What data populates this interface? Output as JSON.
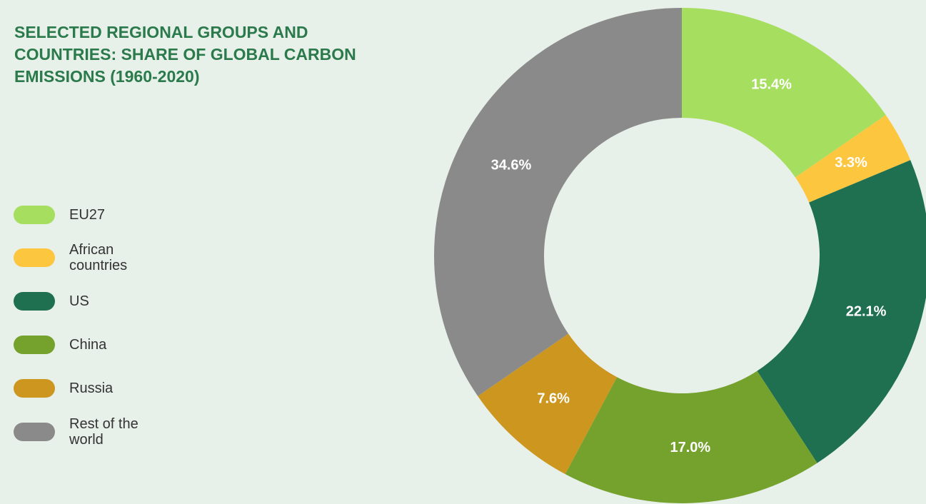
{
  "chart_data": {
    "type": "donut",
    "title": "SELECTED REGIONAL GROUPS AND COUNTRIES: SHARE OF GLOBAL CARBON EMISSIONS (1960-2020)",
    "categories": [
      "EU27",
      "African countries",
      "US",
      "China",
      "Russia",
      "Rest of the world"
    ],
    "values": [
      15.4,
      3.3,
      22.1,
      17.0,
      7.6,
      34.6
    ],
    "value_labels": [
      "15.4%",
      "3.3%",
      "22.1%",
      "17.0%",
      "7.6%",
      "34.6%"
    ],
    "colors": [
      "#a6de5f",
      "#fdc63f",
      "#1f7050",
      "#74a22d",
      "#cc961f",
      "#8a8a8a"
    ]
  }
}
